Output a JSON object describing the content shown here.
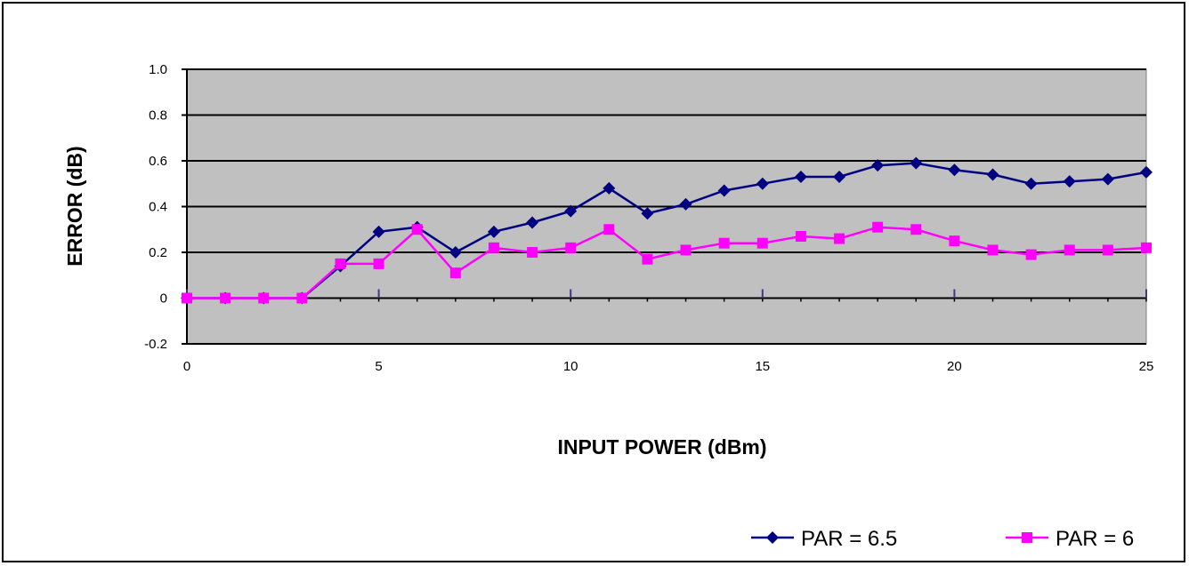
{
  "chart_data": {
    "type": "line",
    "title": "",
    "xlabel": "INPUT POWER (dBm)",
    "ylabel": "ERROR (dB)",
    "xlim": [
      0,
      25
    ],
    "ylim": [
      -0.2,
      1.0
    ],
    "x_ticks": [
      0,
      5,
      10,
      15,
      20,
      25
    ],
    "y_ticks": [
      -0.2,
      0,
      0.2,
      0.4,
      0.6,
      0.8,
      1.0
    ],
    "y_tick_labels": [
      "-0.2",
      "0",
      "0.2",
      "0.4",
      "0.6",
      "0.8",
      "1.0"
    ],
    "x_tick_labels": [
      "0",
      "5",
      "10",
      "15",
      "20",
      "25"
    ],
    "grid": "horizontal",
    "plot_background": "#c0c0c0",
    "legend_position": "bottom-right",
    "x": [
      0,
      1,
      2,
      3,
      4,
      5,
      6,
      7,
      8,
      9,
      10,
      11,
      12,
      13,
      14,
      15,
      16,
      17,
      18,
      19,
      20,
      21,
      22,
      23,
      24,
      25
    ],
    "series": [
      {
        "name": "PAR = 6.5",
        "color": "#000080",
        "marker": "diamond",
        "values": [
          0,
          0,
          0,
          0,
          0.14,
          0.29,
          0.31,
          0.2,
          0.29,
          0.33,
          0.38,
          0.48,
          0.37,
          0.41,
          0.47,
          0.5,
          0.53,
          0.53,
          0.58,
          0.59,
          0.56,
          0.54,
          0.5,
          0.51,
          0.52,
          0.55
        ]
      },
      {
        "name": "PAR = 6",
        "color": "#ff00ff",
        "marker": "square",
        "values": [
          0,
          0,
          0,
          0,
          0.15,
          0.15,
          0.3,
          0.11,
          0.22,
          0.2,
          0.22,
          0.3,
          0.17,
          0.21,
          0.24,
          0.24,
          0.27,
          0.26,
          0.31,
          0.3,
          0.25,
          0.21,
          0.19,
          0.21,
          0.21,
          0.22
        ]
      }
    ]
  }
}
